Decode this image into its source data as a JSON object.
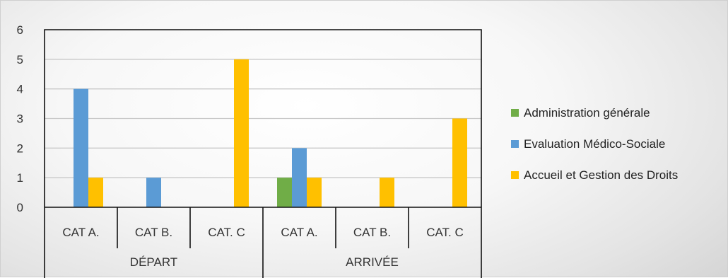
{
  "chart_data": {
    "type": "bar",
    "groups": [
      {
        "label": "DÉPART",
        "categories": [
          "CAT A.",
          "CAT B.",
          "CAT. C"
        ]
      },
      {
        "label": "ARRIVÉE",
        "categories": [
          "CAT A.",
          "CAT B.",
          "CAT. C"
        ]
      }
    ],
    "categories": [
      "CAT A.",
      "CAT B.",
      "CAT. C",
      "CAT A.",
      "CAT B.",
      "CAT. C"
    ],
    "series": [
      {
        "name": "Administration générale",
        "color": "#70AD47",
        "values": [
          0,
          0,
          0,
          1,
          0,
          0
        ]
      },
      {
        "name": "Evaluation Médico-Sociale",
        "color": "#5B9BD5",
        "values": [
          4,
          1,
          0,
          2,
          0,
          0
        ]
      },
      {
        "name": "Accueil et Gestion des Droits",
        "color": "#FFC000",
        "values": [
          1,
          0,
          5,
          1,
          1,
          3
        ]
      }
    ],
    "ylim": [
      0,
      6
    ],
    "yticks": [
      0,
      1,
      2,
      3,
      4,
      5,
      6
    ],
    "grid": true,
    "legend": "right"
  }
}
